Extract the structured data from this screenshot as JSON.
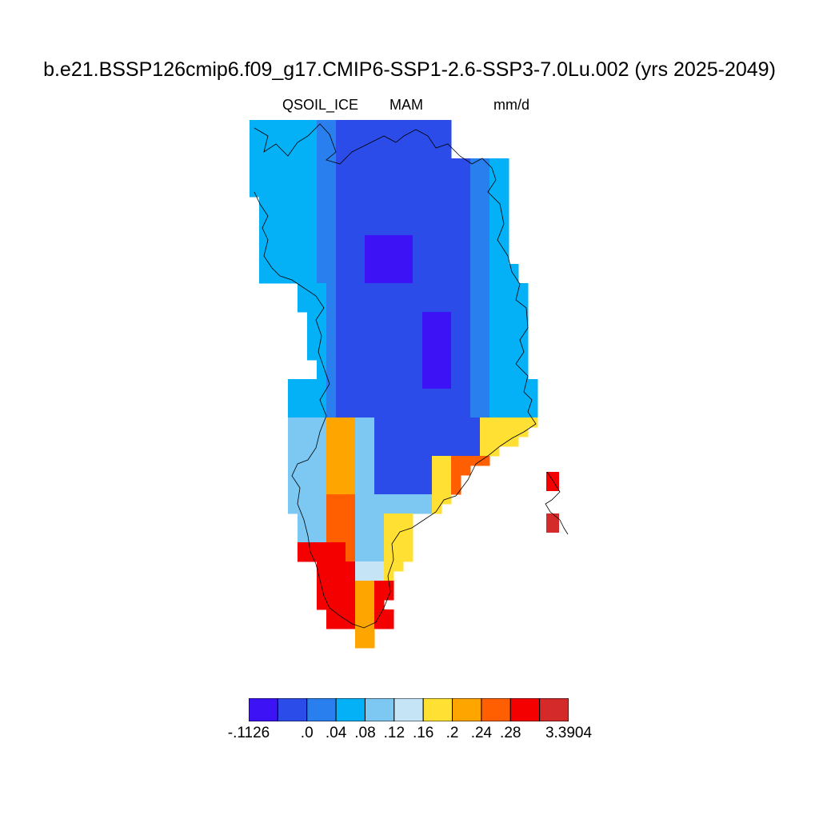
{
  "title": "b.e21.BSSP126cmip6.f09_g17.CMIP6-SSP1-2.6-SSP3-7.0Lu.002 (yrs 2025-2049)",
  "variable": "QSOIL_ICE",
  "season": "MAM",
  "units": "mm/d",
  "colorbar": {
    "labels": [
      "-.1126",
      ".0",
      ".04",
      ".08",
      ".12",
      ".16",
      ".2",
      ".24",
      ".28",
      "3.3904"
    ],
    "colors": [
      "#3d12f5",
      "#2b4ce8",
      "#2a7fee",
      "#04b1f7",
      "#7cc8f2",
      "#c5e5f7",
      "#ffe033",
      "#ffa500",
      "#ff5f00",
      "#f50000",
      "#d42a2a"
    ]
  }
}
